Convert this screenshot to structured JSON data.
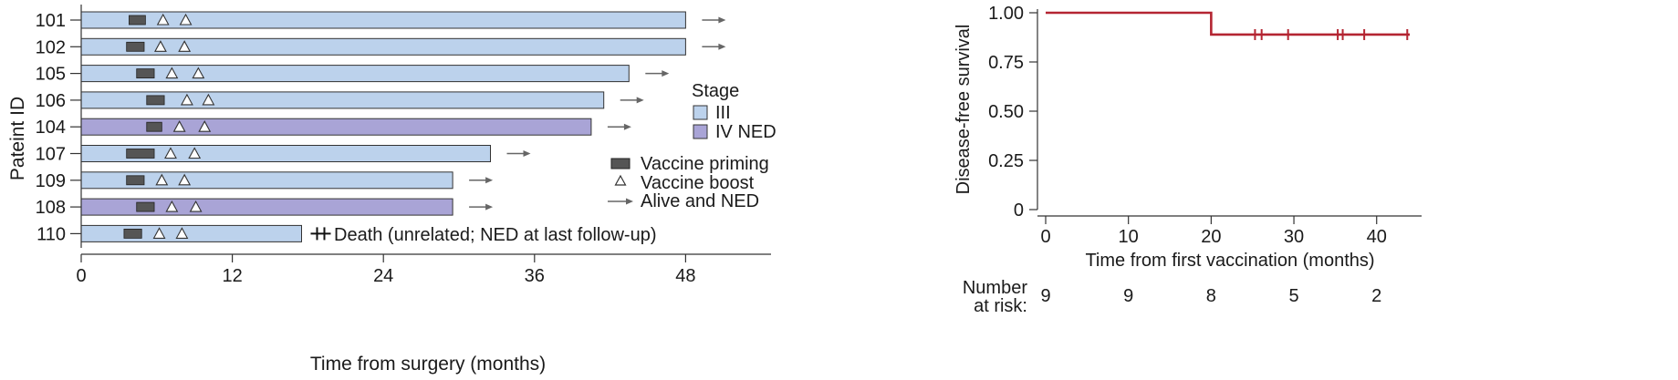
{
  "chart_data": [
    {
      "type": "swimmer",
      "title": "",
      "xlabel": "Time from surgery (months)",
      "ylabel": "Pateint ID",
      "xlim": [
        0,
        54
      ],
      "xticks": [
        0,
        12,
        24,
        36,
        48
      ],
      "patients": [
        {
          "id": "101",
          "stage": "III",
          "end": 48,
          "priming": [
            3.8,
            5.1
          ],
          "boosts": [
            6.5,
            8.3
          ],
          "outcome": "alive"
        },
        {
          "id": "102",
          "stage": "III",
          "end": 48,
          "priming": [
            3.6,
            5.0
          ],
          "boosts": [
            6.3,
            8.2
          ],
          "outcome": "alive"
        },
        {
          "id": "105",
          "stage": "III",
          "end": 43.5,
          "priming": [
            4.4,
            5.8
          ],
          "boosts": [
            7.2,
            9.3
          ],
          "outcome": "alive"
        },
        {
          "id": "106",
          "stage": "III",
          "end": 41.5,
          "priming": [
            5.2,
            6.6
          ],
          "boosts": [
            8.4,
            10.1
          ],
          "outcome": "alive"
        },
        {
          "id": "104",
          "stage": "IV NED",
          "end": 40.5,
          "priming": [
            5.2,
            6.4
          ],
          "boosts": [
            7.8,
            9.8
          ],
          "outcome": "alive"
        },
        {
          "id": "107",
          "stage": "III",
          "end": 32.5,
          "priming": [
            3.6,
            5.8
          ],
          "boosts": [
            7.1,
            9.0
          ],
          "outcome": "alive"
        },
        {
          "id": "109",
          "stage": "III",
          "end": 29.5,
          "priming": [
            3.6,
            5.0
          ],
          "boosts": [
            6.4,
            8.2
          ],
          "outcome": "alive"
        },
        {
          "id": "108",
          "stage": "IV NED",
          "end": 29.5,
          "priming": [
            4.4,
            5.8
          ],
          "boosts": [
            7.2,
            9.1
          ],
          "outcome": "alive"
        },
        {
          "id": "110",
          "stage": "III",
          "end": 17.5,
          "priming": [
            3.4,
            4.8
          ],
          "boosts": [
            6.2,
            8.0
          ],
          "outcome": "death"
        }
      ],
      "legend": {
        "stage_title": "Stage",
        "stage_items": [
          {
            "label": "III",
            "color": "#bcd2ec"
          },
          {
            "label": "IV NED",
            "color": "#a9a4d6"
          }
        ],
        "marker_items": [
          {
            "label": "Vaccine priming",
            "symbol": "bar"
          },
          {
            "label": "Vaccine boost",
            "symbol": "triangle"
          },
          {
            "label": "Alive and NED",
            "symbol": "arrow"
          }
        ]
      },
      "death_annotation": "Death (unrelated; NED at last follow-up)"
    },
    {
      "type": "line",
      "title": "",
      "xlabel": "Time from first vaccination (months)",
      "ylabel": "Disease-free survival",
      "xlim": [
        0,
        44
      ],
      "ylim": [
        0,
        1
      ],
      "xticks": [
        0,
        10,
        20,
        30,
        40
      ],
      "yticks": [
        "0",
        "0.25",
        "0.50",
        "0.75",
        "1.00"
      ],
      "ytick_values": [
        0,
        0.25,
        0.5,
        0.75,
        1.0
      ],
      "series": [
        {
          "x": [
            0,
            20,
            20,
            44
          ],
          "y": [
            1.0,
            1.0,
            0.889,
            0.889
          ],
          "step": true
        }
      ],
      "censor_x": [
        25.3,
        26.1,
        29.3,
        35.3,
        35.9,
        38.5,
        43.7
      ],
      "risk_table": {
        "label_line1": "Number",
        "label_line2": "at risk:",
        "x": [
          0,
          10,
          20,
          30,
          40
        ],
        "values": [
          "9",
          "9",
          "8",
          "5",
          "2"
        ]
      }
    }
  ],
  "colors": {
    "stage_iii": "#bcd2ec",
    "stage_iv": "#a9a4d6",
    "priming": "#555555",
    "km_line": "#b42532",
    "arrow": "#666666",
    "axis": "#333333"
  }
}
